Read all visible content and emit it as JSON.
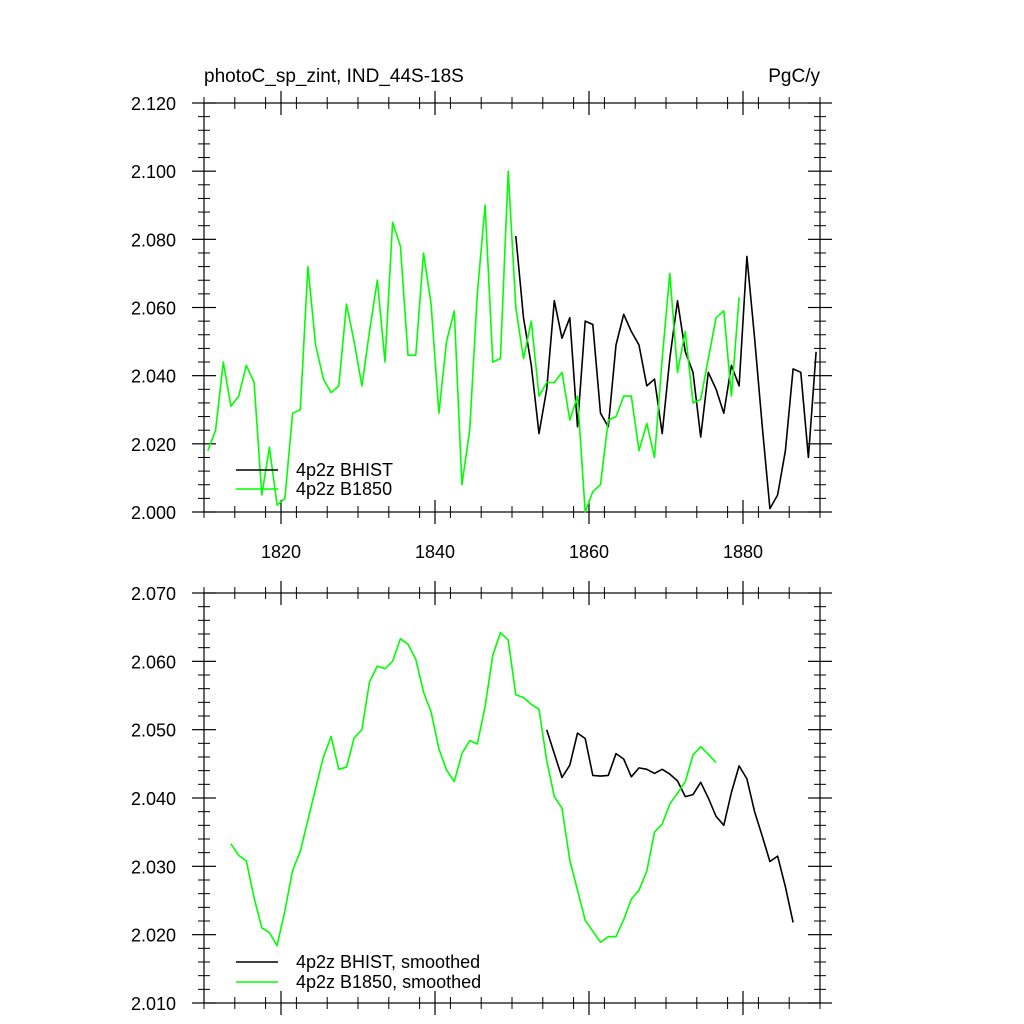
{
  "chart_data": [
    {
      "type": "line",
      "title_left": "photoC_sp_zint, IND_44S-18S",
      "title_right": "PgC/y",
      "xlabel": "",
      "ylabel": "",
      "xlim": [
        1810,
        1890
      ],
      "ylim": [
        2.0,
        2.12
      ],
      "xticks": [
        1820,
        1840,
        1860,
        1880
      ],
      "yticks": [
        2.0,
        2.02,
        2.04,
        2.06,
        2.08,
        2.1,
        2.12
      ],
      "xtick_labels": [
        "1820",
        "1840",
        "1860",
        "1880"
      ],
      "ytick_labels": [
        "2.000",
        "2.020",
        "2.040",
        "2.060",
        "2.080",
        "2.100",
        "2.120"
      ],
      "legend_position": "bottom-left",
      "series": [
        {
          "name": "4p2z BHIST",
          "color": "#000000",
          "x": [
            1850.5,
            1851.5,
            1852.5,
            1853.5,
            1854.5,
            1855.5,
            1856.5,
            1857.5,
            1858.5,
            1859.5,
            1860.5,
            1861.5,
            1862.5,
            1863.5,
            1864.5,
            1865.5,
            1866.5,
            1867.5,
            1868.5,
            1869.5,
            1870.5,
            1871.5,
            1872.5,
            1873.5,
            1874.5,
            1875.5,
            1876.5,
            1877.5,
            1878.5,
            1879.5,
            1880.5,
            1881.5,
            1882.5,
            1883.5,
            1884.5,
            1885.5,
            1886.5,
            1887.5,
            1888.5,
            1889.5
          ],
          "y": [
            2.081,
            2.057,
            2.043,
            2.023,
            2.036,
            2.062,
            2.051,
            2.057,
            2.025,
            2.056,
            2.055,
            2.029,
            2.025,
            2.049,
            2.058,
            2.053,
            2.049,
            2.037,
            2.039,
            2.023,
            2.045,
            2.062,
            2.047,
            2.041,
            2.022,
            2.041,
            2.036,
            2.029,
            2.043,
            2.037,
            2.075,
            2.051,
            2.025,
            2.001,
            2.005,
            2.018,
            2.042,
            2.041,
            2.016,
            2.047
          ]
        },
        {
          "name": "4p2z B1850",
          "color": "#00ff00",
          "x": [
            1810.5,
            1811.5,
            1812.5,
            1813.5,
            1814.5,
            1815.5,
            1816.5,
            1817.5,
            1818.5,
            1819.5,
            1820.5,
            1821.5,
            1822.5,
            1823.5,
            1824.5,
            1825.5,
            1826.5,
            1827.5,
            1828.5,
            1829.5,
            1830.5,
            1831.5,
            1832.5,
            1833.5,
            1834.5,
            1835.5,
            1836.5,
            1837.5,
            1838.5,
            1839.5,
            1840.5,
            1841.5,
            1842.5,
            1843.5,
            1844.5,
            1845.5,
            1846.5,
            1847.5,
            1848.5,
            1849.5,
            1850.5,
            1851.5,
            1852.5,
            1853.5,
            1854.5,
            1855.5,
            1856.5,
            1857.5,
            1858.5,
            1859.5,
            1860.5,
            1861.5,
            1862.5,
            1863.5,
            1864.5,
            1865.5,
            1866.5,
            1867.5,
            1868.5,
            1869.5,
            1870.5,
            1871.5,
            1872.5,
            1873.5,
            1874.5,
            1875.5,
            1876.5,
            1877.5,
            1878.5,
            1879.5
          ],
          "y": [
            2.018,
            2.024,
            2.044,
            2.031,
            2.034,
            2.043,
            2.038,
            2.005,
            2.019,
            2.002,
            2.004,
            2.029,
            2.03,
            2.072,
            2.049,
            2.039,
            2.035,
            2.037,
            2.061,
            2.05,
            2.037,
            2.053,
            2.068,
            2.044,
            2.085,
            2.078,
            2.046,
            2.046,
            2.076,
            2.061,
            2.029,
            2.05,
            2.059,
            2.008,
            2.024,
            2.064,
            2.09,
            2.044,
            2.045,
            2.1,
            2.06,
            2.045,
            2.056,
            2.034,
            2.038,
            2.038,
            2.041,
            2.027,
            2.034,
            2.0,
            2.006,
            2.008,
            2.027,
            2.028,
            2.034,
            2.034,
            2.018,
            2.026,
            2.016,
            2.045,
            2.07,
            2.041,
            2.053,
            2.032,
            2.033,
            2.045,
            2.057,
            2.059,
            2.034,
            2.063
          ]
        }
      ]
    },
    {
      "type": "line",
      "xlabel": "",
      "ylabel": "",
      "xlim": [
        1810,
        1890
      ],
      "ylim": [
        2.01,
        2.07
      ],
      "xticks": [
        1820,
        1840,
        1860,
        1880
      ],
      "yticks": [
        2.01,
        2.02,
        2.03,
        2.04,
        2.05,
        2.06,
        2.07
      ],
      "ytick_labels": [
        "2.010",
        "2.020",
        "2.030",
        "2.040",
        "2.050",
        "2.060",
        "2.070"
      ],
      "legend_position": "bottom-left",
      "series": [
        {
          "name": "4p2z BHIST, smoothed",
          "color": "#000000",
          "x": [
            1854.5,
            1855.5,
            1856.5,
            1857.5,
            1858.5,
            1859.5,
            1860.5,
            1861.5,
            1862.5,
            1863.5,
            1864.5,
            1865.5,
            1866.5,
            1867.5,
            1868.5,
            1869.5,
            1870.5,
            1871.5,
            1872.5,
            1873.5,
            1874.5,
            1875.5,
            1876.5,
            1877.5,
            1878.5,
            1879.5,
            1880.5,
            1881.5,
            1882.5,
            1883.5,
            1884.5,
            1885.5,
            1886.5
          ],
          "y": [
            2.05,
            2.0465,
            2.043,
            2.0448,
            2.0495,
            2.0487,
            2.0433,
            2.0432,
            2.0433,
            2.0465,
            2.0457,
            2.0431,
            2.0444,
            2.0442,
            2.0436,
            2.0442,
            2.0435,
            2.0425,
            2.0402,
            2.0405,
            2.0423,
            2.04,
            2.0373,
            2.036,
            2.0408,
            2.0447,
            2.0428,
            2.038,
            2.0344,
            2.0307,
            2.0315,
            2.027,
            2.0218
          ]
        },
        {
          "name": "4p2z B1850, smoothed",
          "color": "#00ff00",
          "x": [
            1813.5,
            1814.5,
            1815.5,
            1816.5,
            1817.5,
            1818.5,
            1819.5,
            1820.5,
            1821.5,
            1822.5,
            1823.5,
            1824.5,
            1825.5,
            1826.5,
            1827.5,
            1828.5,
            1829.5,
            1830.5,
            1831.5,
            1832.5,
            1833.5,
            1834.5,
            1835.5,
            1836.5,
            1837.5,
            1838.5,
            1839.5,
            1840.5,
            1841.5,
            1842.5,
            1843.5,
            1844.5,
            1845.5,
            1846.5,
            1847.5,
            1848.5,
            1849.5,
            1850.5,
            1851.5,
            1852.5,
            1853.5,
            1854.5,
            1855.5,
            1856.5,
            1857.5,
            1858.5,
            1859.5,
            1860.5,
            1861.5,
            1862.5,
            1863.5,
            1864.5,
            1865.5,
            1866.5,
            1867.5,
            1868.5,
            1869.5,
            1870.5,
            1871.5,
            1872.5,
            1873.5,
            1874.5,
            1875.5,
            1876.5
          ],
          "y": [
            2.0333,
            2.0316,
            2.0308,
            2.0254,
            2.021,
            2.0203,
            2.0184,
            2.0235,
            2.0294,
            2.0322,
            2.0368,
            2.0414,
            2.046,
            2.049,
            2.0442,
            2.0445,
            2.0488,
            2.05,
            2.057,
            2.0593,
            2.0589,
            2.06,
            2.0633,
            2.0625,
            2.0603,
            2.0555,
            2.0526,
            2.0472,
            2.0441,
            2.0424,
            2.0465,
            2.0484,
            2.0479,
            2.0534,
            2.0609,
            2.0642,
            2.0631,
            2.0551,
            2.0547,
            2.0537,
            2.053,
            2.0455,
            2.0402,
            2.0385,
            2.0309,
            2.0265,
            2.0221,
            2.0205,
            2.0189,
            2.0197,
            2.0197,
            2.0222,
            2.0252,
            2.0265,
            2.0293,
            2.035,
            2.0362,
            2.0391,
            2.0407,
            2.0424,
            2.0463,
            2.0475,
            2.0464,
            2.0452
          ]
        }
      ]
    }
  ]
}
